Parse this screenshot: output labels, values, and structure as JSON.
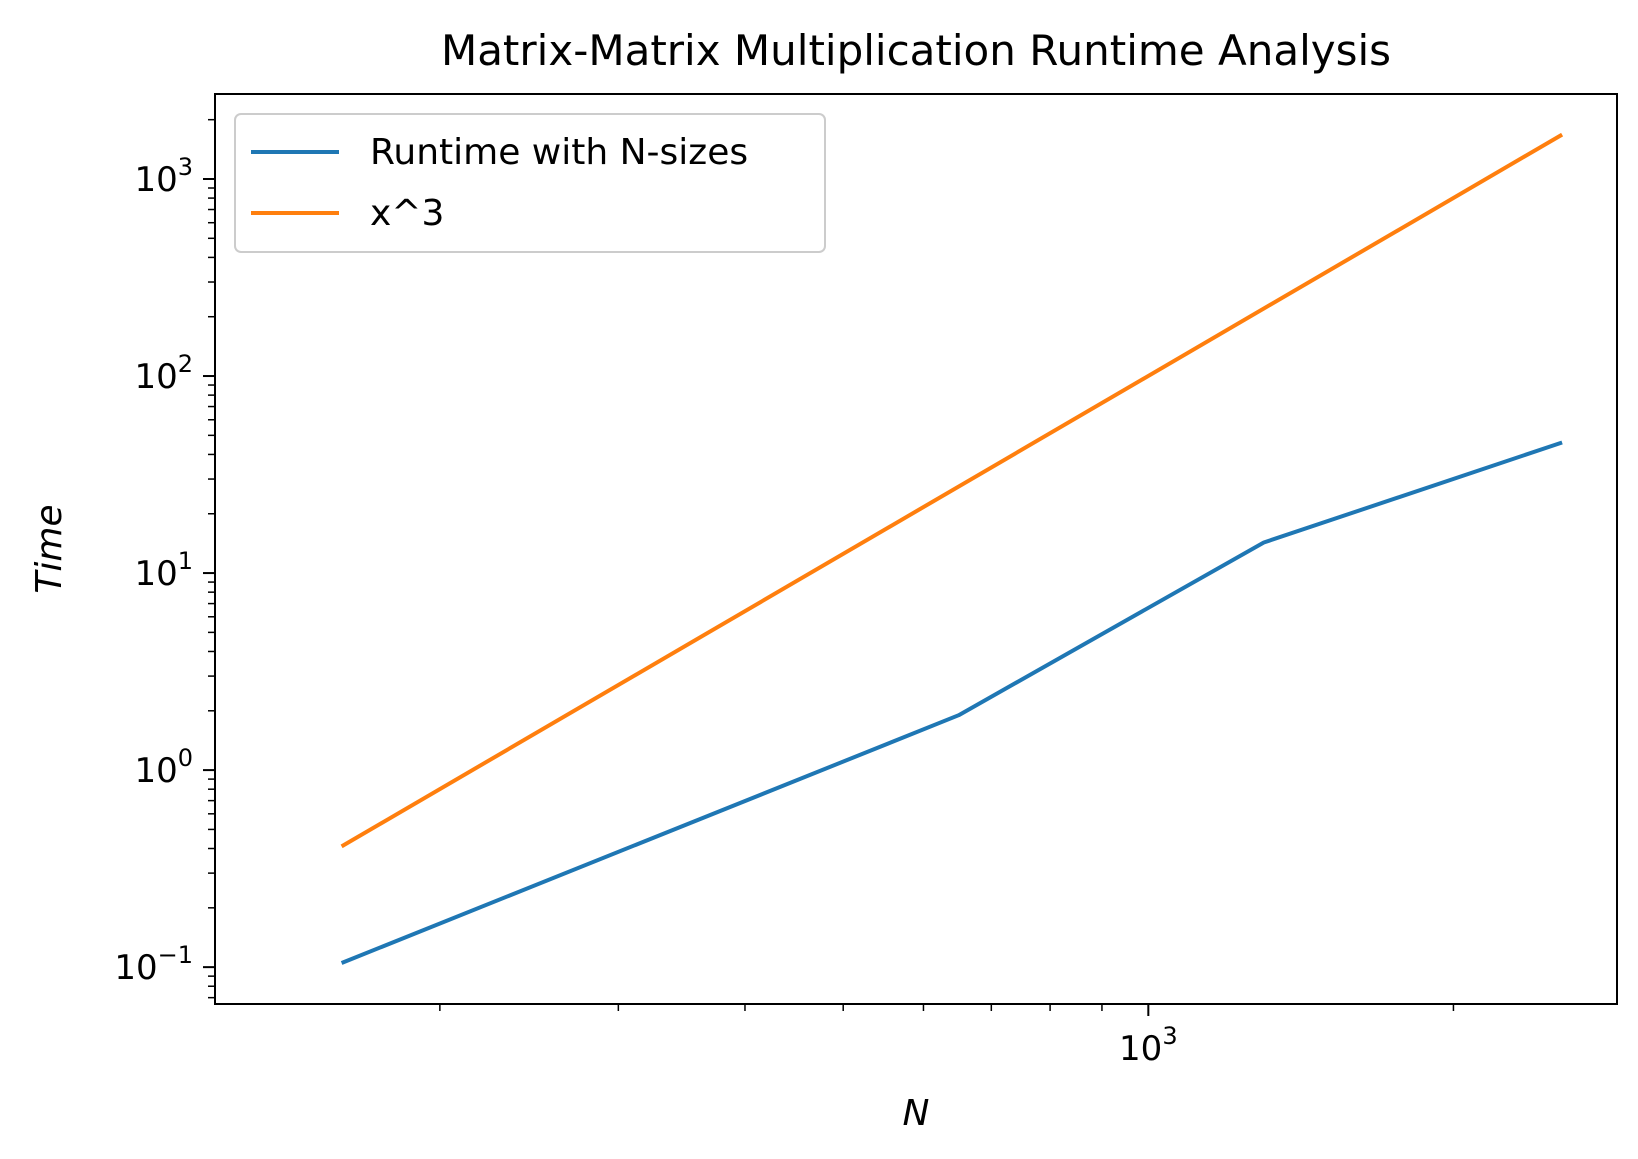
{
  "chart_data": {
    "type": "line",
    "title": "Matrix-Matrix Multiplication Runtime Analysis",
    "xlabel": "N",
    "ylabel": "Time",
    "xscale": "log",
    "yscale": "log",
    "xlim": [
      120,
      2900
    ],
    "ylim": [
      0.065,
      2700
    ],
    "x_ticks": [
      {
        "base": "10",
        "exp": "3",
        "value": 1000
      }
    ],
    "y_ticks": [
      {
        "base": "10",
        "exp": "−1",
        "value": 0.1
      },
      {
        "base": "10",
        "exp": "0",
        "value": 1
      },
      {
        "base": "10",
        "exp": "1",
        "value": 10
      },
      {
        "base": "10",
        "exp": "2",
        "value": 100
      },
      {
        "base": "10",
        "exp": "3",
        "value": 1000
      }
    ],
    "grid": false,
    "legend_position": "upper left",
    "series": [
      {
        "name": "Runtime with N-sizes",
        "color": "#1f77b4",
        "x": [
          160,
          650,
          1300,
          2560
        ],
        "y": [
          0.105,
          1.9,
          14.3,
          46
        ]
      },
      {
        "name": "x^3",
        "color": "#ff7f0e",
        "x": [
          160,
          2560
        ],
        "y": [
          0.41,
          1680
        ]
      }
    ]
  }
}
